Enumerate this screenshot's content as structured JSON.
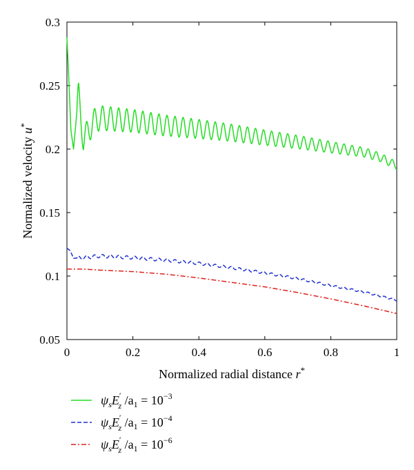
{
  "chart_data": {
    "type": "line",
    "xlabel": "Normalized radial distance r*",
    "ylabel": "Normalized velocity u*",
    "xlim": [
      0,
      1
    ],
    "ylim": [
      0.05,
      0.3
    ],
    "x_ticks": [
      "0",
      "0.2",
      "0.4",
      "0.6",
      "0.8",
      "1"
    ],
    "y_ticks": [
      "0.05",
      "0.1",
      "0.15",
      "0.2",
      "0.25",
      "0.3"
    ],
    "grid": false,
    "legend_position": "below-plot",
    "series": [
      {
        "name": "ψsE′z/a1 = 10^−3",
        "color": "#22dd22",
        "style": "solid",
        "x": [
          0,
          0.005,
          0.012,
          0.02,
          0.035,
          0.05,
          0.08,
          0.1,
          0.2,
          0.3,
          0.4,
          0.5,
          0.6,
          0.7,
          0.8,
          0.9,
          0.95,
          1.0
        ],
        "y": [
          0.288,
          0.26,
          0.215,
          0.2,
          0.243,
          0.207,
          0.2215,
          0.2245,
          0.2222,
          0.2185,
          0.2158,
          0.2128,
          0.209,
          0.2055,
          0.2015,
          0.1975,
          0.1935,
          0.187
        ],
        "oscillation": {
          "period": 0.0244,
          "amplitude_start": 0.0105,
          "amplitude_end": 0.003
        }
      },
      {
        "name": "ψsE′z/a1 = 10^−4",
        "color": "#1f2fd0",
        "style": "dashed",
        "x": [
          0,
          0.01,
          0.02,
          0.05,
          0.1,
          0.2,
          0.3,
          0.4,
          0.5,
          0.6,
          0.7,
          0.8,
          0.9,
          1.0
        ],
        "y": [
          0.122,
          0.12,
          0.114,
          0.1145,
          0.1158,
          0.1145,
          0.1125,
          0.11,
          0.1065,
          0.1025,
          0.098,
          0.0925,
          0.0875,
          0.081
        ],
        "oscillation": {
          "period": 0.0244,
          "amplitude_start": 0.0014,
          "amplitude_end": 0.0006
        }
      },
      {
        "name": "ψsE′z/a1 = 10^−6",
        "color": "#e0201a",
        "style": "dashdot",
        "x": [
          0,
          0.05,
          0.1,
          0.2,
          0.3,
          0.4,
          0.5,
          0.6,
          0.7,
          0.8,
          0.9,
          1.0
        ],
        "y": [
          0.1055,
          0.1055,
          0.1047,
          0.1035,
          0.1015,
          0.0985,
          0.095,
          0.0915,
          0.087,
          0.082,
          0.0765,
          0.0705
        ]
      }
    ]
  },
  "legend": {
    "entries": [
      {
        "prefix": "ψ",
        "sub1": "s",
        "main": "E",
        "sup": "′",
        "sub2": "z",
        "mid": " /a",
        "sub3": "1",
        "eq": " = 10",
        "exp": "−3"
      },
      {
        "prefix": "ψ",
        "sub1": "s",
        "main": "E",
        "sup": "′",
        "sub2": "z",
        "mid": " /a",
        "sub3": "1",
        "eq": " = 10",
        "exp": "−4"
      },
      {
        "prefix": "ψ",
        "sub1": "s",
        "main": "E",
        "sup": "′",
        "sub2": "z",
        "mid": " /a",
        "sub3": "1",
        "eq": " = 10",
        "exp": "−6"
      }
    ]
  },
  "axes": {
    "x_title": "Normalized radial distance ",
    "x_var": "r",
    "x_sup": "*",
    "y_title": "Normalized velocity ",
    "y_var": "u",
    "y_sup": "*"
  }
}
